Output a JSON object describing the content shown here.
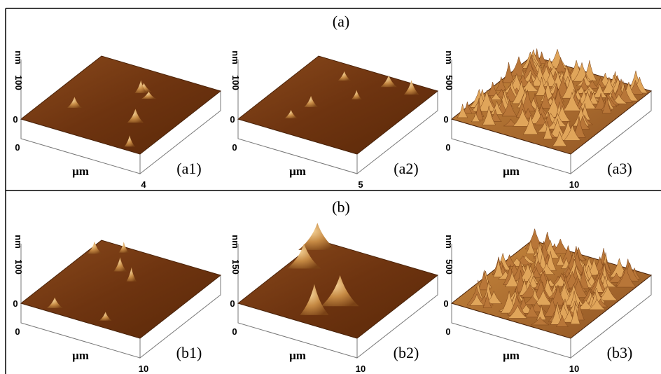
{
  "panels": [
    {
      "title": "(a)",
      "images": [
        {
          "label": "(a1)",
          "z_unit": "nm",
          "z_max": 100,
          "z_min": 0,
          "x_min": 0,
          "x_unit": "μm",
          "x_max": 4
        },
        {
          "label": "(a2)",
          "z_unit": "nm",
          "z_max": 100,
          "z_min": 0,
          "x_min": 0,
          "x_unit": "μm",
          "x_max": 5
        },
        {
          "label": "(a3)",
          "z_unit": "nm",
          "z_max": 500,
          "z_min": 0,
          "x_min": 0,
          "x_unit": "μm",
          "x_max": 10
        }
      ]
    },
    {
      "title": "(b)",
      "images": [
        {
          "label": "(b1)",
          "z_unit": "nm",
          "z_max": 100,
          "z_min": 0,
          "x_min": 0,
          "x_unit": "μm",
          "x_max": 10
        },
        {
          "label": "(b2)",
          "z_unit": "nm",
          "z_max": 150,
          "z_min": 0,
          "x_min": 0,
          "x_unit": "μm",
          "x_max": 10
        },
        {
          "label": "(b3)",
          "z_unit": "nm",
          "z_max": 500,
          "z_min": 0,
          "x_min": 0,
          "x_unit": "μm",
          "x_max": 10
        }
      ]
    }
  ]
}
